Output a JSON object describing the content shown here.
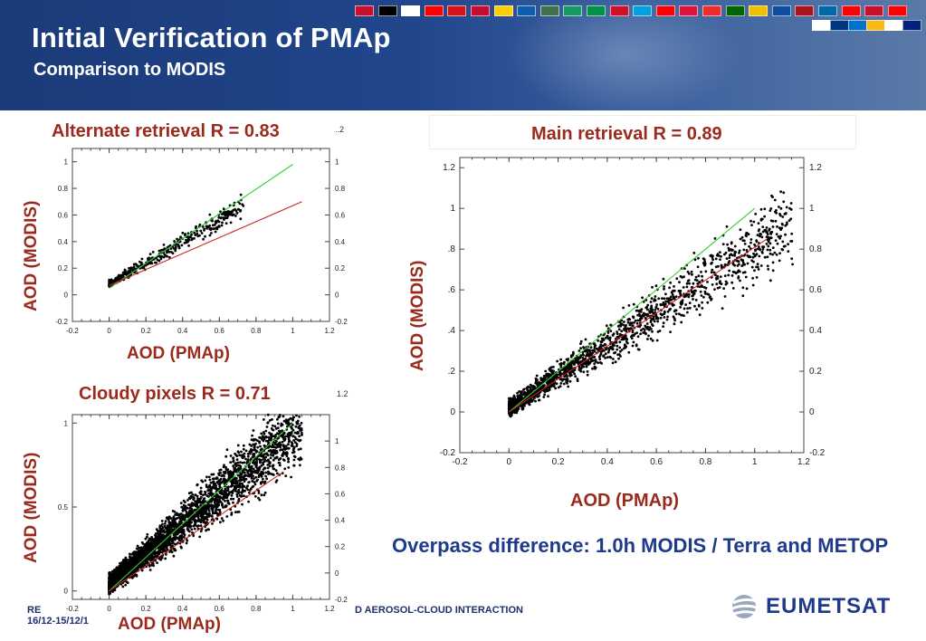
{
  "slide": {
    "title": "Initial Verification of PMAp",
    "subtitle": "Comparison to MODIS",
    "overpass_note": "Overpass difference: 1.0h MODIS / Terra and METOP",
    "footer_left": "RE",
    "footer_date": "16/12-15/12/1",
    "footer_right": "D AEROSOL-CLOUD INTERACTION",
    "logo_text": "EUMETSAT",
    "colors": {
      "banner": "#21468c",
      "title_red": "#9b2a1c",
      "note_blue": "#1f3a8a",
      "fit_green": "#33cc33",
      "fit_red": "#cc2222"
    }
  },
  "flags": [
    "#c8102e",
    "#000000",
    "#ffffff",
    "#ff0000",
    "#d7141a",
    "#c60c30",
    "#ffce00",
    "#0d5eaf",
    "#436f4d",
    "#169b62",
    "#009246",
    "#ce1126",
    "#00a1de",
    "#ff0000",
    "#dc143c",
    "#ef2b2d",
    "#006600",
    "#f0c000",
    "#0b4ea2",
    "#aa151b",
    "#006aa7",
    "#ff0000",
    "#c8102e",
    "#ff0000",
    "#ffffff",
    "#003580",
    "#0072ce",
    "#fdb913",
    "#ffffff",
    "#00247d"
  ],
  "panels": {
    "alternate": {
      "title": "Alternate retrieval R = 0.83",
      "xlabel": "AOD (PMAp)",
      "ylabel": "AOD (MODIS)",
      "corner_tick": "..2"
    },
    "main": {
      "title": "Main retrieval R = 0.89",
      "xlabel": "AOD (PMAp)",
      "ylabel": "AOD (MODIS)"
    },
    "cloudy": {
      "title": "Cloudy pixels R = 0.71",
      "xlabel": "AOD (PMAp)",
      "ylabel": "AOD (MODIS)",
      "corner_tick": "1.2"
    }
  },
  "chart_data": [
    {
      "id": "alternate",
      "type": "scatter",
      "title": "Alternate retrieval R = 0.83",
      "xlabel": "AOD (PMAp)",
      "ylabel": "AOD (MODIS)",
      "xlim": [
        -0.2,
        1.2
      ],
      "ylim": [
        -0.2,
        1.1
      ],
      "xticks": [
        -0.2,
        0,
        0.2,
        0.4,
        0.6,
        0.8,
        1,
        1.2
      ],
      "yticks": [
        -0.2,
        0,
        0.2,
        0.4,
        0.6,
        0.8,
        1
      ],
      "ytick_labels_right": [
        "-0.2",
        "0",
        "0.2",
        "0.4",
        "0.6",
        "0.8",
        "1"
      ],
      "xtick_labels": [
        "-0.2",
        "0",
        "0.2",
        "0.4",
        "0.6",
        "0.8",
        "1",
        "1.2"
      ],
      "ytick_labels": [
        "-0.2",
        "0",
        "0.2",
        "0.4",
        "0.6",
        "0.8",
        "1"
      ],
      "series": [
        {
          "name": "",
          "kind": "fit",
          "color": "#33cc33",
          "x": [
            0.0,
            1.0
          ],
          "y": [
            0.05,
            0.98
          ]
        },
        {
          "name": "",
          "kind": "fit",
          "color": "#cc2222",
          "x": [
            0.0,
            1.05
          ],
          "y": [
            0.07,
            0.7
          ]
        }
      ],
      "cloud": {
        "n": 420,
        "x_center": 0.12,
        "x_spread": 0.35,
        "slope": 0.8,
        "intercept": 0.08,
        "noise": 0.06
      }
    },
    {
      "id": "main",
      "type": "scatter",
      "title": "Main retrieval R = 0.89",
      "xlabel": "AOD (PMAp)",
      "ylabel": "AOD (MODIS)",
      "xlim": [
        -0.2,
        1.2
      ],
      "ylim": [
        -0.2,
        1.25
      ],
      "xticks": [
        -0.2,
        0,
        0.2,
        0.4,
        0.6,
        0.8,
        1,
        1.2
      ],
      "yticks": [
        -0.2,
        0,
        0.2,
        0.4,
        0.6,
        0.8,
        1,
        1.2
      ],
      "xtick_labels": [
        "-0.2",
        "0",
        "0.2",
        "0.4",
        "0.6",
        "0.8",
        "1",
        "1.2"
      ],
      "ytick_labels": [
        "-0.2",
        "0",
        ".2",
        ".4",
        ".6",
        ".8",
        "1",
        "1.2"
      ],
      "ytick_labels_right": [
        "-0.2",
        "0",
        "0.2",
        "0.4",
        "0.6",
        "0.8",
        "1",
        "1.2"
      ],
      "series": [
        {
          "name": "",
          "kind": "fit",
          "color": "#33cc33",
          "x": [
            0.0,
            1.0
          ],
          "y": [
            0.0,
            1.0
          ]
        },
        {
          "name": "",
          "kind": "fit",
          "color": "#cc2222",
          "x": [
            0.0,
            1.05
          ],
          "y": [
            0.0,
            0.85
          ]
        }
      ],
      "cloud": {
        "n": 1700,
        "x_center": 0.35,
        "x_spread": 0.55,
        "slope": 0.78,
        "intercept": 0.02,
        "noise": 0.09
      }
    },
    {
      "id": "cloudy",
      "type": "scatter",
      "title": "Cloudy pixels R = 0.71",
      "xlabel": "AOD (PMAp)",
      "ylabel": "AOD (MODIS)",
      "xlim": [
        -0.2,
        1.2
      ],
      "ylim": [
        -0.05,
        1.05
      ],
      "xticks": [
        -0.2,
        0,
        0.2,
        0.4,
        0.6,
        0.8,
        1,
        1.2
      ],
      "yticks": [
        0,
        0.5,
        1
      ],
      "xtick_labels": [
        "-0.2",
        "0",
        "0.2",
        "0.4",
        "0.6",
        "0.8",
        "1",
        "1.2"
      ],
      "ytick_labels": [
        "0",
        "0.5",
        "1"
      ],
      "ytick_labels_right": [
        "-0.2",
        "0",
        "0.2",
        "0.4",
        "0.6",
        "0.8",
        "1"
      ],
      "right_ticks": [
        -0.2,
        0,
        0.2,
        0.4,
        0.6,
        0.8,
        1
      ],
      "series": [
        {
          "name": "",
          "kind": "fit",
          "color": "#33cc33",
          "x": [
            0.0,
            1.0
          ],
          "y": [
            0.0,
            1.0
          ]
        },
        {
          "name": "",
          "kind": "fit",
          "color": "#cc2222",
          "x": [
            0.0,
            0.95
          ],
          "y": [
            0.0,
            0.71
          ]
        }
      ],
      "cloud": {
        "n": 3200,
        "x_center": 0.25,
        "x_spread": 0.5,
        "slope": 0.9,
        "intercept": 0.04,
        "noise": 0.12
      }
    }
  ]
}
